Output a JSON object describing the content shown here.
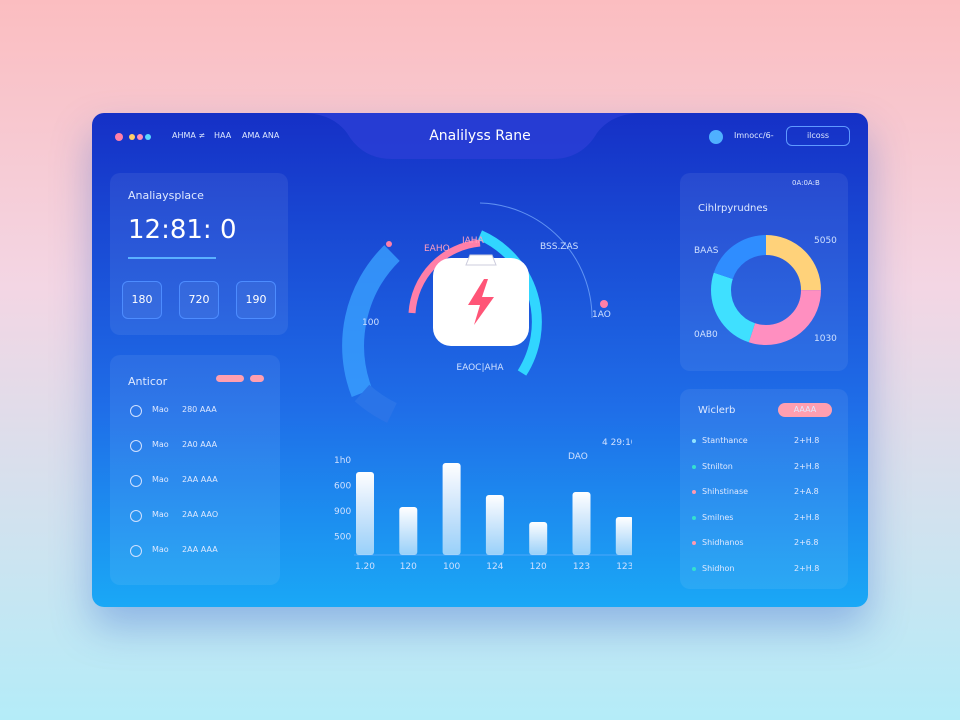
{
  "header": {
    "nav": [
      "AHMA ≠",
      "HAA",
      "AMA ANA"
    ],
    "title": "Analilyss Rane",
    "user": "Imnocc/6-",
    "button": "ilcoss"
  },
  "clock_card": {
    "title": "Analiaysplace",
    "time": "12:81: 0",
    "stats": [
      180,
      720,
      190
    ]
  },
  "activity": {
    "title": "Anticor",
    "rows": [
      [
        "Mao",
        "280 AAA"
      ],
      [
        "Mao",
        "2A0 AAA"
      ],
      [
        "Mao",
        "2AA AAA"
      ],
      [
        "Mao",
        "2AA AAO"
      ],
      [
        "Mao",
        "2AA AAA"
      ]
    ]
  },
  "gauge": {
    "labels": [
      "EAHO",
      "IAHA",
      "BSS.ZAS",
      "1AO",
      "100",
      "DAO"
    ],
    "caption": "EAOC|AHA"
  },
  "chart_data": [
    {
      "type": "bar",
      "label": "4 29:10",
      "y_labels": [
        "1h0",
        "600",
        "900",
        "500"
      ],
      "categories": [
        "1.20",
        "120",
        "100",
        "124",
        "120",
        "123",
        "123"
      ],
      "values": [
        83,
        48,
        92,
        60,
        33,
        63,
        38
      ],
      "ylim": [
        0,
        100
      ],
      "color": "#ffffff"
    },
    {
      "type": "pie",
      "title": "Cihlrpyrudnes",
      "label": "0A:0A:B",
      "categories": [
        "5050",
        "1030",
        "0AB0",
        "BAAS"
      ],
      "values": [
        25,
        30,
        25,
        20
      ],
      "colors": [
        "#ffd27a",
        "#ff8fc0",
        "#3fe0ff",
        "#2f8dff"
      ]
    }
  ],
  "list": {
    "title": "Wiclerb",
    "badge": "AAAA",
    "items": [
      {
        "name": "Stanthance",
        "value": "2+H.8",
        "color": "#8fe3ff"
      },
      {
        "name": "Stnilton",
        "value": "2+H.8",
        "color": "#34e0d0"
      },
      {
        "name": "Shihstinase",
        "value": "2+A.8",
        "color": "#ff9ab0"
      },
      {
        "name": "Smilnes",
        "value": "2+H.8",
        "color": "#34e0d0"
      },
      {
        "name": "Shidhanos",
        "value": "2+6.8",
        "color": "#ff9ab0"
      },
      {
        "name": "Shidhon",
        "value": "2+H.8",
        "color": "#34e0d0"
      }
    ]
  }
}
